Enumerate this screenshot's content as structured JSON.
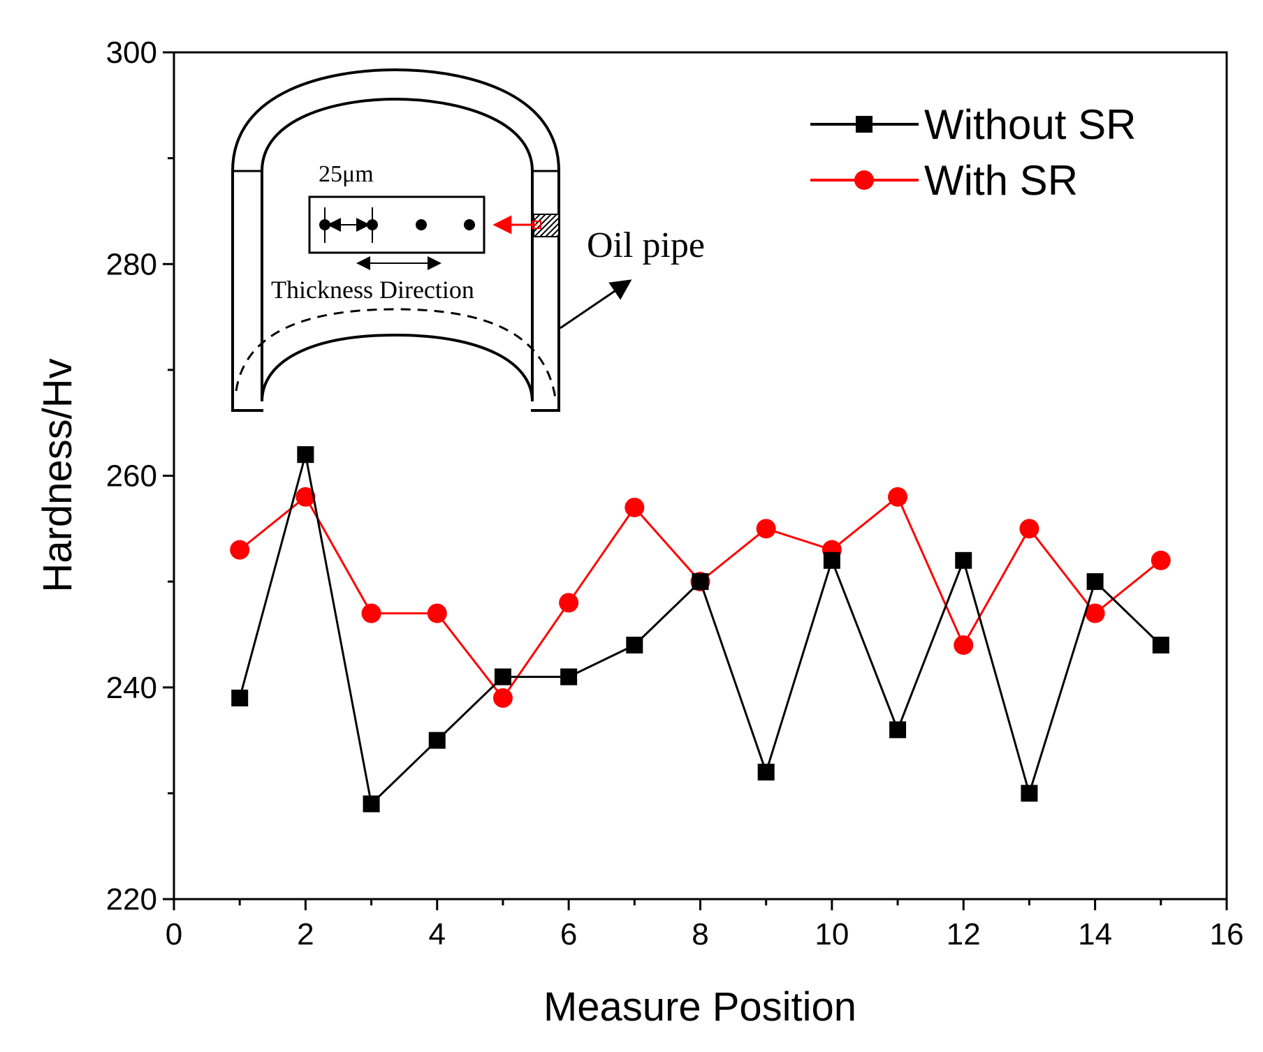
{
  "chart_data": {
    "type": "line",
    "title": "",
    "xlabel": "Measure Position",
    "ylabel": "Hardness/Hv",
    "xlim": [
      0,
      16
    ],
    "ylim": [
      220,
      300
    ],
    "xticks": [
      0,
      2,
      4,
      6,
      8,
      10,
      12,
      14,
      16
    ],
    "yticks": [
      220,
      240,
      260,
      280,
      300
    ],
    "x": [
      1,
      2,
      3,
      4,
      5,
      6,
      7,
      8,
      9,
      10,
      11,
      12,
      13,
      14,
      15
    ],
    "series": [
      {
        "name": "Without SR",
        "color": "#000000",
        "marker": "square",
        "values": [
          239,
          262,
          229,
          235,
          241,
          241,
          244,
          250,
          232,
          252,
          236,
          252,
          230,
          250,
          244
        ]
      },
      {
        "name": "With SR",
        "color": "#ff0000",
        "marker": "circle",
        "values": [
          253,
          258,
          247,
          247,
          239,
          248,
          257,
          250,
          255,
          253,
          258,
          244,
          255,
          247,
          252
        ]
      }
    ],
    "grid": false,
    "legend_position": "top-right"
  },
  "inset": {
    "spacing_label": "25μm",
    "direction_label": "Thickness Direction",
    "pipe_label": "Oil pipe"
  }
}
